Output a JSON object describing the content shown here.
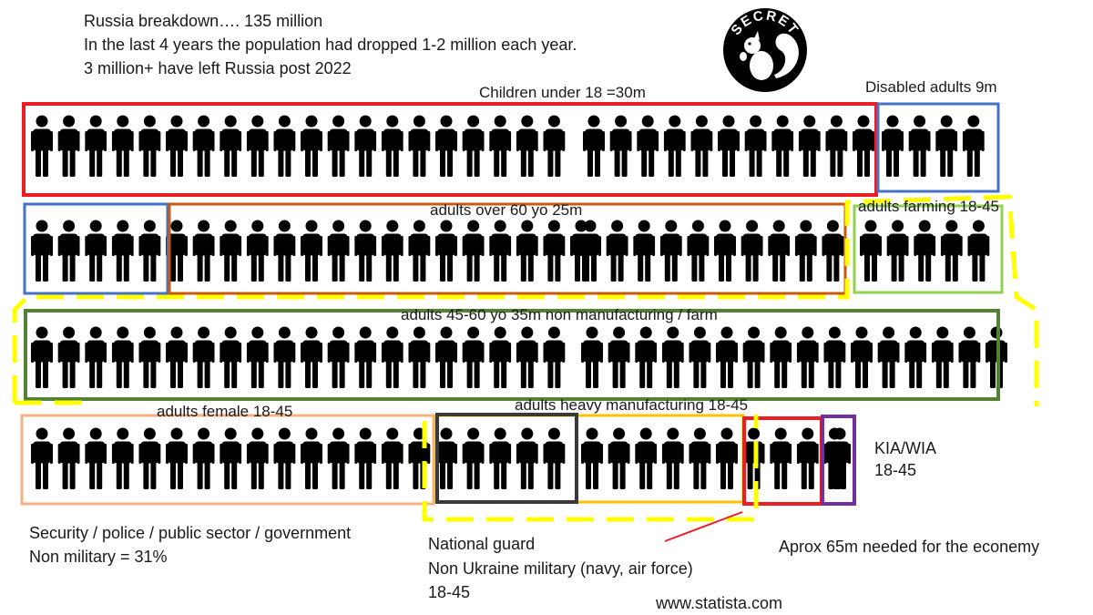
{
  "header": {
    "line1": "Russia breakdown…. 135 million",
    "line2": "In the last 4 years the population had dropped 1-2 million each year.",
    "line3": "3 million+ have left Russia post 2022"
  },
  "logo": {
    "text": "SECRET",
    "icon": "squirrel-icon"
  },
  "groups": {
    "children": "Children under 18 =30m",
    "disabled": "Disabled adults 9m",
    "over60": "adults over 60 yo 25m",
    "farming": "adults farming 18-45",
    "mid_age": "adults 45-60 yo 35m non manufacturing / farm",
    "female": "adults female 18-45",
    "heavy_mfg": "adults heavy manufacturing 18-45",
    "kia_line1": "KIA/WIA",
    "kia_line2": "18-45"
  },
  "notes": {
    "security_line1": "Security / police / public sector / government",
    "security_line2": "Non military = 31%",
    "guard_line1": "National guard",
    "guard_line2": "Non Ukraine military (navy, air force)",
    "guard_line3": "18-45",
    "economy": "Aprox 65m needed for the econemy",
    "source": "www.statista.com"
  },
  "colors": {
    "children": "#ee1c24",
    "disabled": "#4472c4",
    "over60": "#c55a11",
    "farming": "#92d050",
    "mid_age": "#548235",
    "female": "#f4b183",
    "heavy_mfg": "#ffc000",
    "guard": "#3a3a3a",
    "red_group": "#ee1c24",
    "kia": "#7030a0",
    "military_dashed": "#ffff00",
    "figure": "#000000"
  }
}
